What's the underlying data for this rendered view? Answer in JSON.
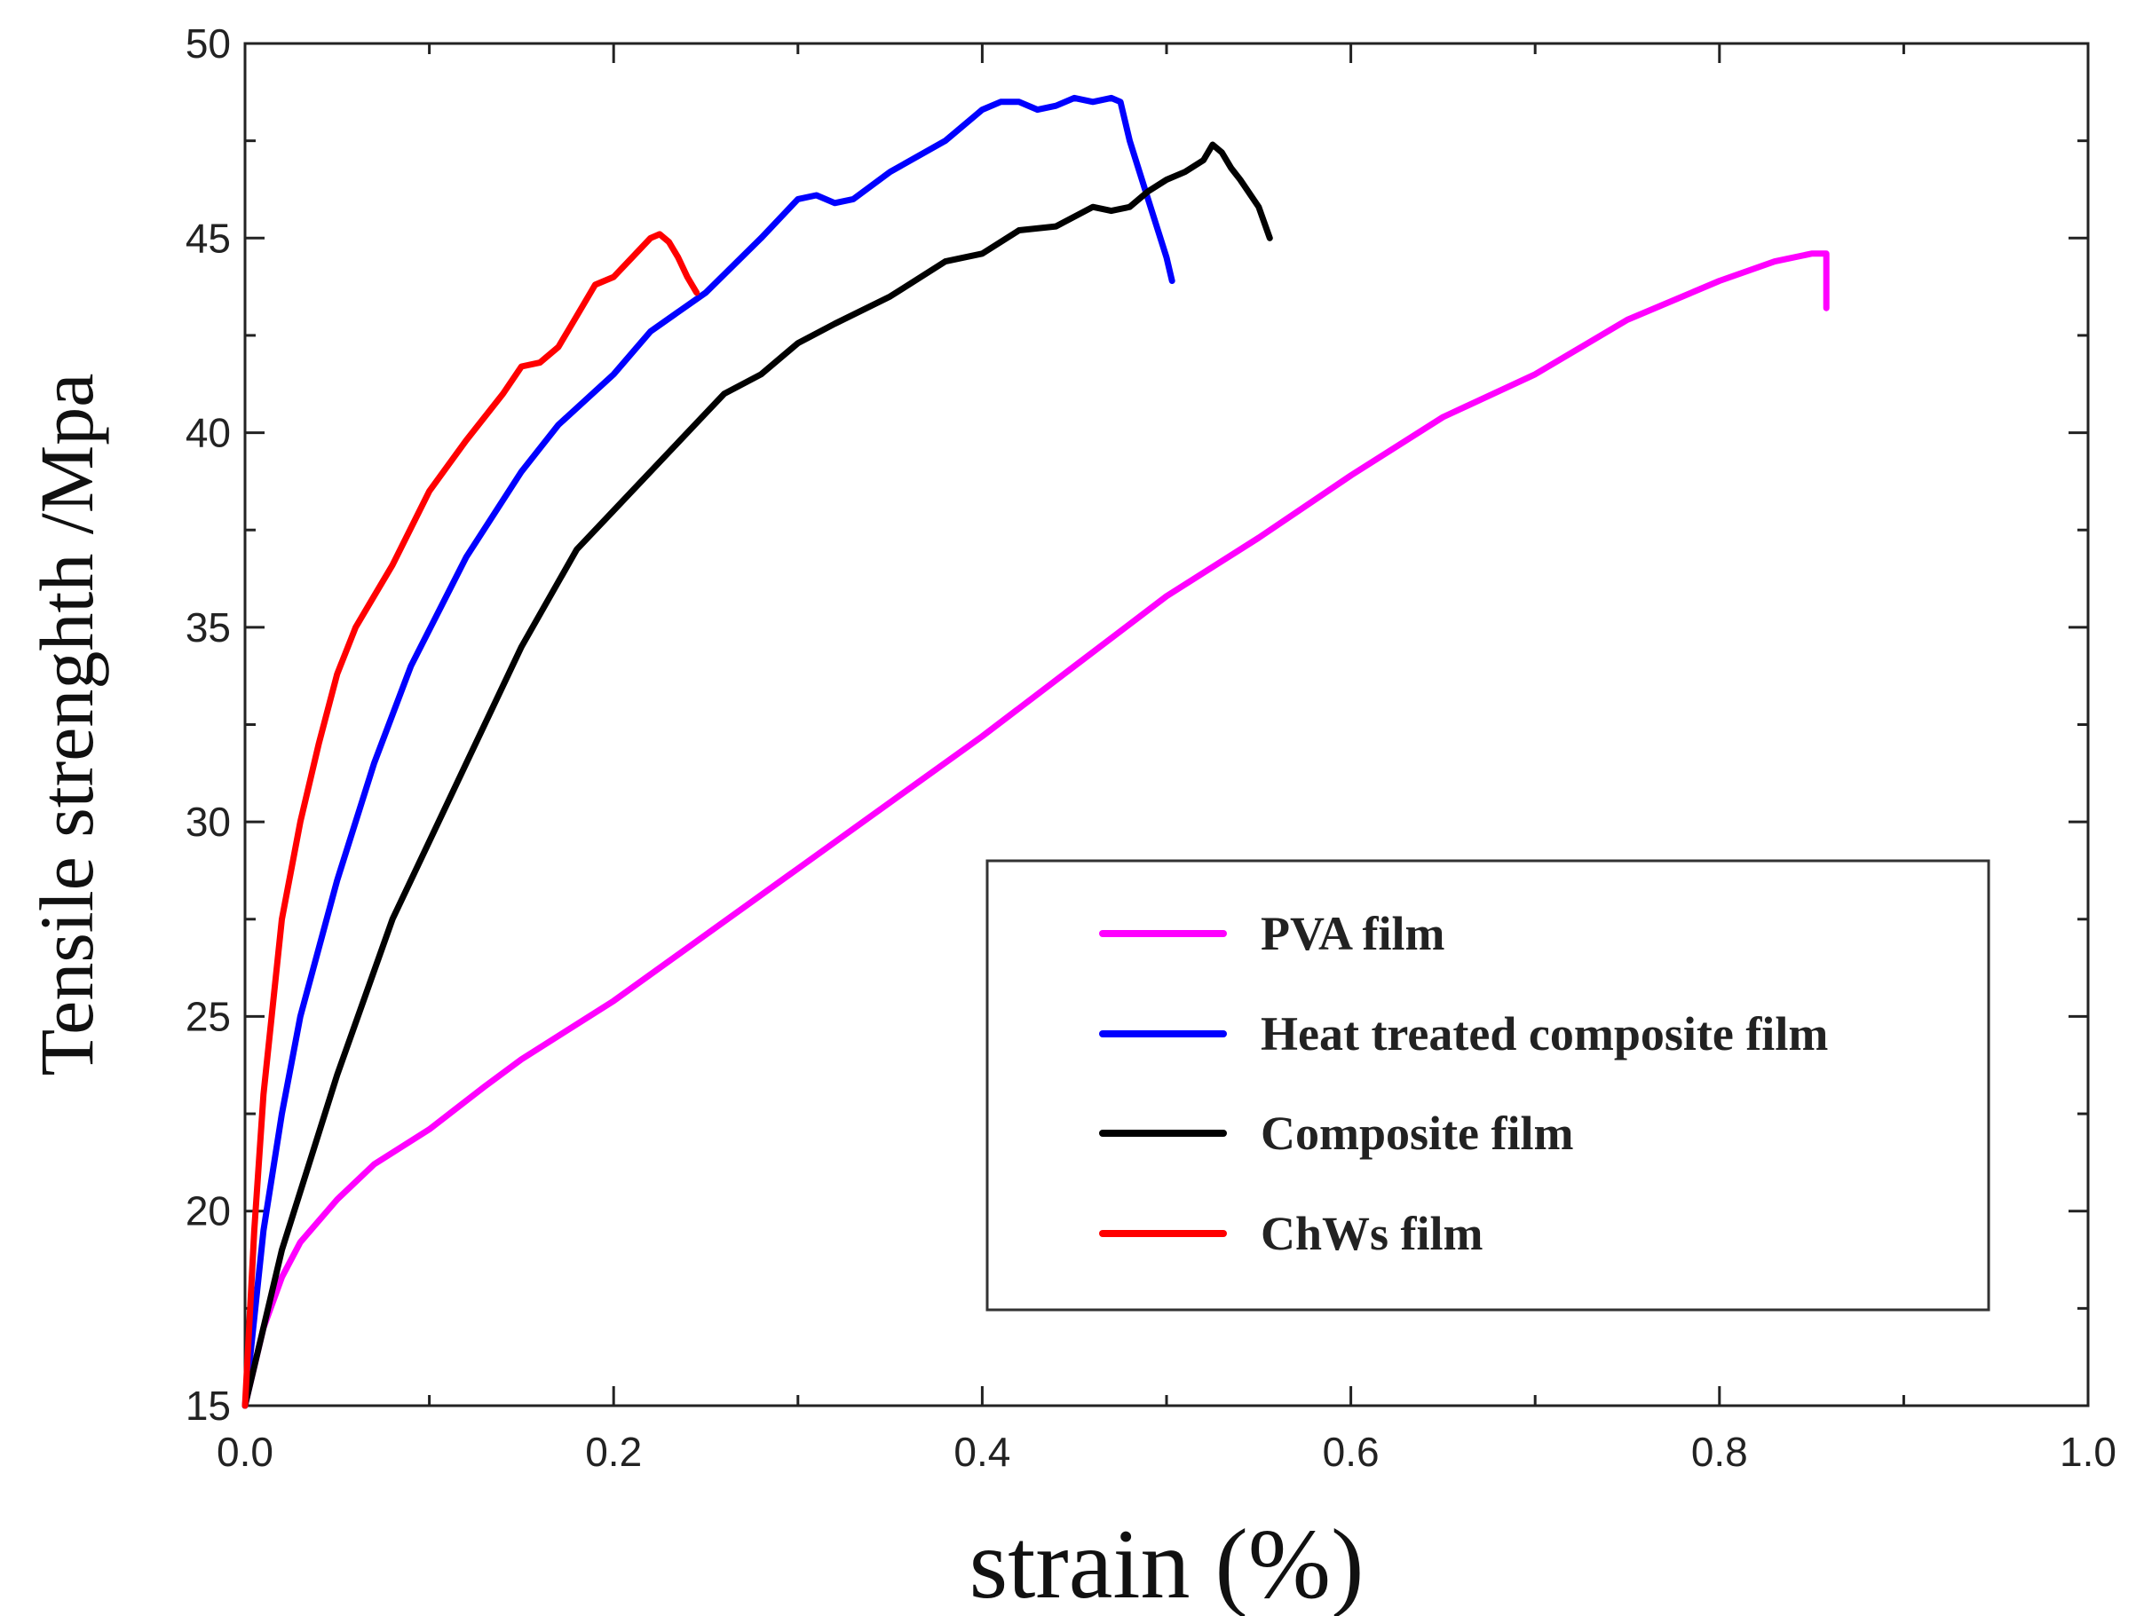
{
  "chart_data": {
    "type": "line",
    "title": "",
    "xlabel": "strain (%)",
    "ylabel": "Tensile strenghth /Mpa",
    "xlim": [
      0.0,
      1.0
    ],
    "ylim": [
      15,
      50
    ],
    "xticks": [
      0.0,
      0.2,
      0.4,
      0.6,
      0.8,
      1.0
    ],
    "xtick_labels": [
      "0.0",
      "0.2",
      "0.4",
      "0.6",
      "0.8",
      "1.0"
    ],
    "yticks": [
      15,
      20,
      25,
      30,
      35,
      40,
      45,
      50
    ],
    "ytick_labels": [
      "15",
      "20",
      "25",
      "30",
      "35",
      "40",
      "45",
      "50"
    ],
    "grid": false,
    "legend_position": "lower-right",
    "series": [
      {
        "name": "PVA film",
        "color": "#ff00ff",
        "x": [
          0.0,
          0.01,
          0.02,
          0.03,
          0.05,
          0.07,
          0.1,
          0.13,
          0.15,
          0.2,
          0.25,
          0.3,
          0.35,
          0.4,
          0.45,
          0.5,
          0.55,
          0.6,
          0.65,
          0.7,
          0.75,
          0.8,
          0.83,
          0.85,
          0.858,
          0.858,
          0.858
        ],
        "y": [
          15.0,
          17.0,
          18.3,
          19.2,
          20.3,
          21.2,
          22.1,
          23.2,
          23.9,
          25.4,
          27.1,
          28.8,
          30.5,
          32.2,
          34.0,
          35.8,
          37.3,
          38.9,
          40.4,
          41.5,
          42.9,
          43.9,
          44.4,
          44.6,
          44.6,
          43.2,
          44.6
        ]
      },
      {
        "name": "Heat treated composite film",
        "color": "#0000ff",
        "x": [
          0.0,
          0.01,
          0.02,
          0.03,
          0.05,
          0.07,
          0.09,
          0.12,
          0.15,
          0.17,
          0.2,
          0.22,
          0.25,
          0.28,
          0.3,
          0.31,
          0.32,
          0.33,
          0.35,
          0.38,
          0.4,
          0.41,
          0.42,
          0.43,
          0.44,
          0.45,
          0.46,
          0.47,
          0.475,
          0.48,
          0.49,
          0.5,
          0.503
        ],
        "y": [
          15.0,
          19.5,
          22.5,
          25.0,
          28.5,
          31.5,
          34.0,
          36.8,
          39.0,
          40.2,
          41.5,
          42.6,
          43.6,
          45.0,
          46.0,
          46.1,
          45.9,
          46.0,
          46.7,
          47.5,
          48.3,
          48.5,
          48.5,
          48.3,
          48.4,
          48.6,
          48.5,
          48.6,
          48.5,
          47.5,
          46.0,
          44.5,
          43.9
        ]
      },
      {
        "name": "Composite film",
        "color": "#000000",
        "x": [
          0.0,
          0.02,
          0.05,
          0.08,
          0.1,
          0.12,
          0.15,
          0.18,
          0.2,
          0.23,
          0.25,
          0.26,
          0.28,
          0.3,
          0.32,
          0.35,
          0.38,
          0.4,
          0.42,
          0.44,
          0.46,
          0.47,
          0.48,
          0.49,
          0.5,
          0.51,
          0.52,
          0.525,
          0.53,
          0.535,
          0.54,
          0.55,
          0.556
        ],
        "y": [
          15.0,
          19.0,
          23.5,
          27.5,
          29.5,
          31.5,
          34.5,
          37.0,
          38.0,
          39.5,
          40.5,
          41.0,
          41.5,
          42.3,
          42.8,
          43.5,
          44.4,
          44.6,
          45.2,
          45.3,
          45.8,
          45.7,
          45.8,
          46.2,
          46.5,
          46.7,
          47.0,
          47.4,
          47.2,
          46.8,
          46.5,
          45.8,
          45.0
        ]
      },
      {
        "name": "ChWs film",
        "color": "#ff0000",
        "x": [
          0.0,
          0.005,
          0.01,
          0.02,
          0.03,
          0.04,
          0.05,
          0.06,
          0.07,
          0.08,
          0.1,
          0.12,
          0.14,
          0.15,
          0.16,
          0.17,
          0.18,
          0.19,
          0.2,
          0.21,
          0.22,
          0.225,
          0.23,
          0.235,
          0.24,
          0.245
        ],
        "y": [
          15.0,
          19.5,
          23.0,
          27.5,
          30.0,
          32.0,
          33.8,
          35.0,
          35.8,
          36.6,
          38.5,
          39.8,
          41.0,
          41.7,
          41.8,
          42.2,
          43.0,
          43.8,
          44.0,
          44.5,
          45.0,
          45.1,
          44.9,
          44.5,
          44.0,
          43.6
        ]
      }
    ]
  }
}
